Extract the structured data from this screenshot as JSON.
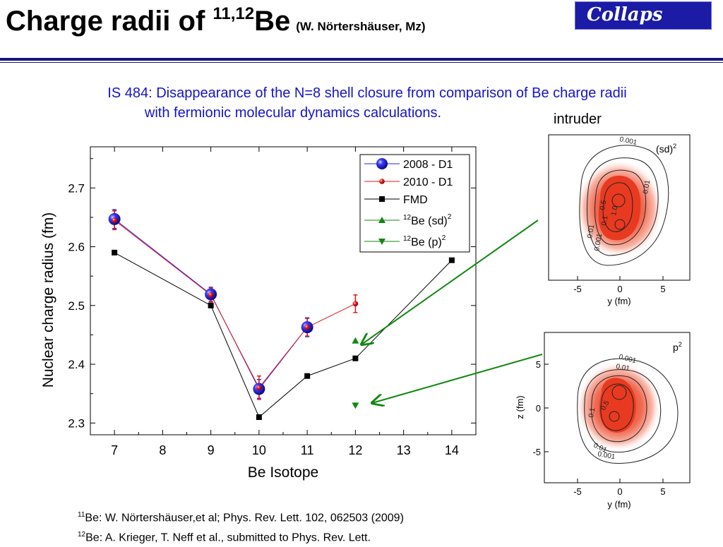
{
  "header": {
    "title_main": "Charge radii of ",
    "title_sup": "11,12",
    "title_elem": "Be",
    "author": "(W. Nörtershäuser, Mz)",
    "logo_text": "Collaps"
  },
  "subtitle": {
    "line1": "IS 484: Disappearance of the N=8 shell closure from comparison of Be charge radii",
    "line2": "with fermionic molecular dynamics calculations."
  },
  "intruder_label": "intruder",
  "chart_data": [
    {
      "type": "scatter",
      "xlabel": "Be Isotope",
      "ylabel": "Nuclear charge radius  (fm)",
      "xlim": [
        6.5,
        14.5
      ],
      "ylim": [
        2.28,
        2.77
      ],
      "xticks": [
        7,
        8,
        9,
        10,
        11,
        12,
        13,
        14
      ],
      "yticks": [
        "2.3",
        "2.4",
        "2.5",
        "2.6",
        "2.7"
      ],
      "legend_position": "top-right",
      "series": [
        {
          "name": "2008 - D1",
          "style": "line+marker",
          "color": "#2222ee",
          "x": [
            7,
            9,
            10,
            11
          ],
          "y": [
            2.647,
            2.519,
            2.358,
            2.463
          ],
          "err": [
            0.016,
            0.012,
            0.016,
            0.016
          ]
        },
        {
          "name": "2010 - D1",
          "style": "line+marker",
          "color": "#e01818",
          "x": [
            7,
            9,
            10,
            11,
            12
          ],
          "y": [
            2.645,
            2.518,
            2.36,
            2.463,
            2.503
          ],
          "err": [
            0.016,
            0.012,
            0.02,
            0.015,
            0.015
          ]
        },
        {
          "name": "FMD",
          "style": "line+marker",
          "color": "#000000",
          "x": [
            7,
            9,
            10,
            11,
            12,
            14
          ],
          "y": [
            2.59,
            2.5,
            2.31,
            2.38,
            2.41,
            2.577
          ]
        },
        {
          "name_pre": "12",
          "name": "Be (sd)",
          "name_post": "2",
          "style": "marker",
          "color": "#108810",
          "x": [
            12
          ],
          "y": [
            2.44
          ]
        },
        {
          "name_pre": "12",
          "name": "Be   (p)",
          "name_post": "2",
          "style": "marker",
          "color": "#108810",
          "x": [
            12
          ],
          "y": [
            2.33
          ]
        }
      ]
    },
    {
      "type": "heatmap",
      "label": "(sd)",
      "label_sup": "2",
      "xlabel": "y (fm)",
      "xticks": [
        "-5",
        "0",
        "5"
      ],
      "contour_labels": [
        "0.001",
        "0.01",
        "0.1",
        "0.5",
        "1.0"
      ]
    },
    {
      "type": "heatmap",
      "label": "p",
      "label_sup": "2",
      "xlabel": "y (fm)",
      "ylabel": "z (fm)",
      "xticks": [
        "-5",
        "0",
        "5"
      ],
      "yticks": [
        "5",
        "0",
        "-5"
      ],
      "contour_labels": [
        "0.001",
        "0.01",
        "0.1",
        "0.5",
        "0.001",
        "0.01"
      ]
    }
  ],
  "references": [
    {
      "sup": "11",
      "text": "Be: W. Nörtershäuser,et al; Phys. Rev. Lett. 102, 062503 (2009)"
    },
    {
      "sup": "12",
      "text": "Be: A. Krieger, T. Neff et al., submitted to Phys. Rev. Lett."
    }
  ],
  "colors": {
    "title_rule": "#16167a",
    "subtitle": "#1414cc",
    "arrow": "#118811",
    "density_red": "#e8301a"
  }
}
